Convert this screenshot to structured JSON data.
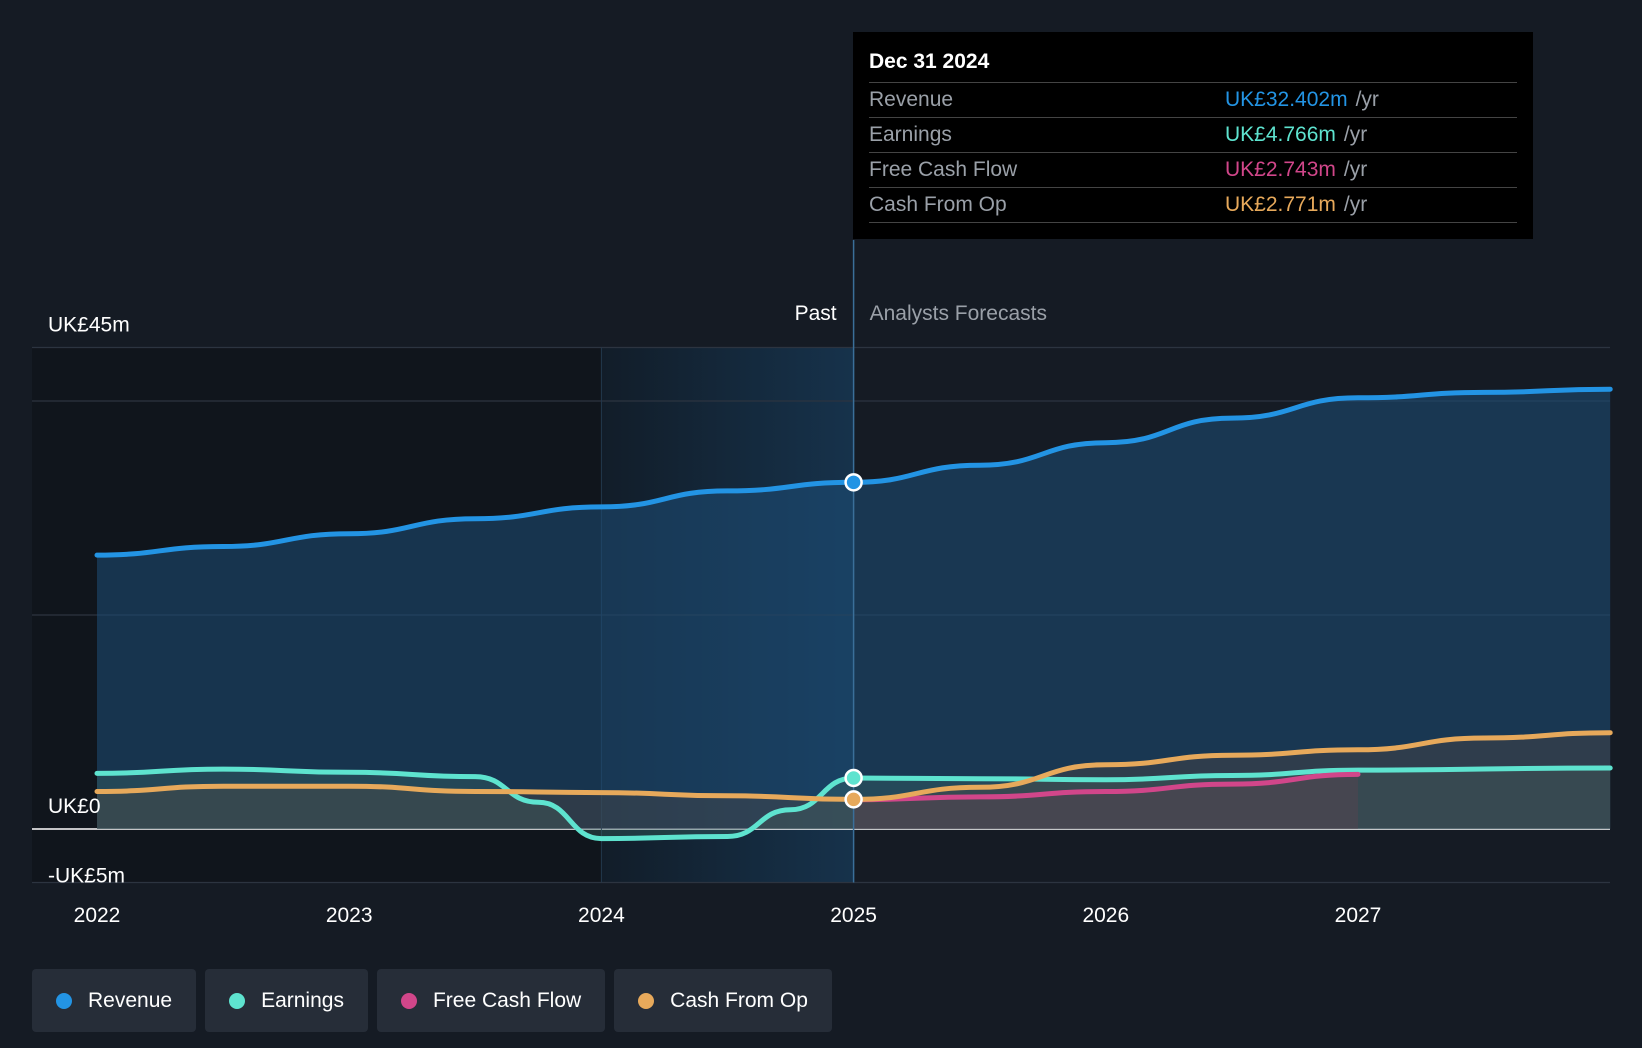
{
  "chart_data": {
    "type": "line",
    "x_ticks": [
      "2022",
      "2023",
      "2024",
      "2025",
      "2026",
      "2027"
    ],
    "y_ticks": [
      {
        "value": 45,
        "label": "UK£45m"
      },
      {
        "value": 0,
        "label": "UK£0"
      },
      {
        "value": -5,
        "label": "-UK£5m"
      }
    ],
    "ylim": [
      -5,
      45
    ],
    "xlim": [
      2021.75,
      2028.0
    ],
    "divider_x": 2025.0,
    "past_label": "Past",
    "forecast_label": "Analysts Forecasts",
    "series": [
      {
        "name": "Revenue",
        "color": "#2394e4",
        "points": [
          [
            2022.0,
            25.6
          ],
          [
            2022.5,
            26.4
          ],
          [
            2023.0,
            27.6
          ],
          [
            2023.5,
            29.0
          ],
          [
            2024.0,
            30.1
          ],
          [
            2024.5,
            31.6
          ],
          [
            2025.0,
            32.4
          ],
          [
            2025.5,
            34.0
          ],
          [
            2026.0,
            36.1
          ],
          [
            2026.5,
            38.4
          ],
          [
            2027.0,
            40.3
          ],
          [
            2027.5,
            40.8
          ],
          [
            2028.0,
            41.1
          ]
        ]
      },
      {
        "name": "Earnings",
        "color": "#5ee3cf",
        "points": [
          [
            2022.0,
            5.2
          ],
          [
            2022.5,
            5.6
          ],
          [
            2023.0,
            5.3
          ],
          [
            2023.5,
            4.9
          ],
          [
            2023.75,
            2.5
          ],
          [
            2024.0,
            -0.9
          ],
          [
            2024.5,
            -0.7
          ],
          [
            2024.75,
            1.8
          ],
          [
            2025.0,
            4.77
          ],
          [
            2025.5,
            4.7
          ],
          [
            2026.0,
            4.6
          ],
          [
            2026.5,
            5.0
          ],
          [
            2027.0,
            5.5
          ],
          [
            2028.0,
            5.7
          ]
        ]
      },
      {
        "name": "Free Cash Flow",
        "color": "#d1468a",
        "points": [
          [
            2025.0,
            2.74
          ],
          [
            2025.5,
            3.0
          ],
          [
            2026.0,
            3.5
          ],
          [
            2026.5,
            4.2
          ],
          [
            2027.0,
            5.1
          ]
        ]
      },
      {
        "name": "Cash From Op",
        "color": "#e7a95b",
        "points": [
          [
            2022.0,
            3.5
          ],
          [
            2022.5,
            4.0
          ],
          [
            2023.0,
            4.0
          ],
          [
            2023.5,
            3.5
          ],
          [
            2024.0,
            3.4
          ],
          [
            2024.5,
            3.1
          ],
          [
            2025.0,
            2.77
          ],
          [
            2025.5,
            3.9
          ],
          [
            2026.0,
            6.0
          ],
          [
            2026.5,
            6.9
          ],
          [
            2027.0,
            7.4
          ],
          [
            2027.5,
            8.5
          ],
          [
            2028.0,
            9.0
          ]
        ]
      }
    ],
    "highlight": {
      "date": "Dec 31 2024",
      "x": 2025.0,
      "rows": [
        {
          "series": "Revenue",
          "value": "UK£32.402m",
          "unit": "/yr",
          "color": "#2394e4"
        },
        {
          "series": "Earnings",
          "value": "UK£4.766m",
          "unit": "/yr",
          "color": "#5ee3cf"
        },
        {
          "series": "Free Cash Flow",
          "value": "UK£2.743m",
          "unit": "/yr",
          "color": "#d1468a"
        },
        {
          "series": "Cash From Op",
          "value": "UK£2.771m",
          "unit": "/yr",
          "color": "#e7a95b"
        }
      ]
    },
    "legend": [
      {
        "label": "Revenue",
        "color": "#2394e4"
      },
      {
        "label": "Earnings",
        "color": "#5ee3cf"
      },
      {
        "label": "Free Cash Flow",
        "color": "#d1468a"
      },
      {
        "label": "Cash From Op",
        "color": "#e7a95b"
      }
    ]
  }
}
